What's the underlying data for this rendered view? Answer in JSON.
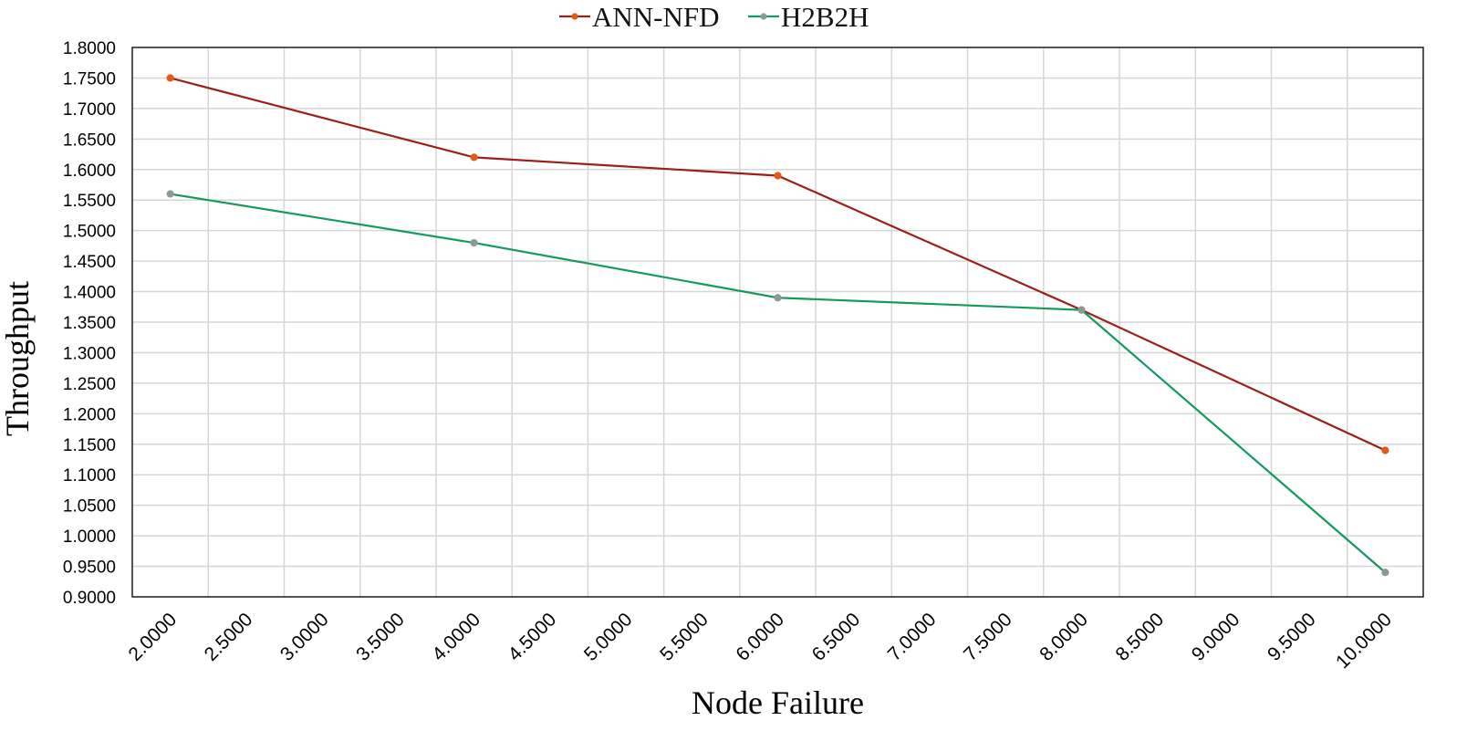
{
  "chart_data": {
    "type": "line",
    "title": "",
    "xlabel": "Node Failure",
    "ylabel": "Throughput",
    "xlim": [
      2.0,
      10.0
    ],
    "ylim": [
      0.9,
      1.8
    ],
    "x_ticks": [
      "2.0000",
      "2.5000",
      "3.0000",
      "3.5000",
      "4.0000",
      "4.5000",
      "5.0000",
      "5.5000",
      "6.0000",
      "6.5000",
      "7.0000",
      "7.5000",
      "8.0000",
      "8.5000",
      "9.0000",
      "9.5000",
      "10.0000"
    ],
    "y_ticks": [
      "0.9000",
      "0.9500",
      "1.0000",
      "1.0500",
      "1.1000",
      "1.1500",
      "1.2000",
      "1.2500",
      "1.3000",
      "1.3500",
      "1.4000",
      "1.4500",
      "1.5000",
      "1.5500",
      "1.6000",
      "1.6500",
      "1.7000",
      "1.7500",
      "1.8000"
    ],
    "categories": [
      2,
      4,
      6,
      8,
      10
    ],
    "grid": true,
    "legend_position": "top-center",
    "series": [
      {
        "name": "ANN-NFD",
        "color": "#9b1f1a",
        "marker_color": "#e05a1a",
        "values": [
          1.75,
          1.62,
          1.59,
          1.37,
          1.14
        ]
      },
      {
        "name": "H2B2H",
        "color": "#159a5e",
        "marker_color": "#8c9a96",
        "values": [
          1.56,
          1.48,
          1.39,
          1.37,
          0.94
        ]
      }
    ]
  }
}
